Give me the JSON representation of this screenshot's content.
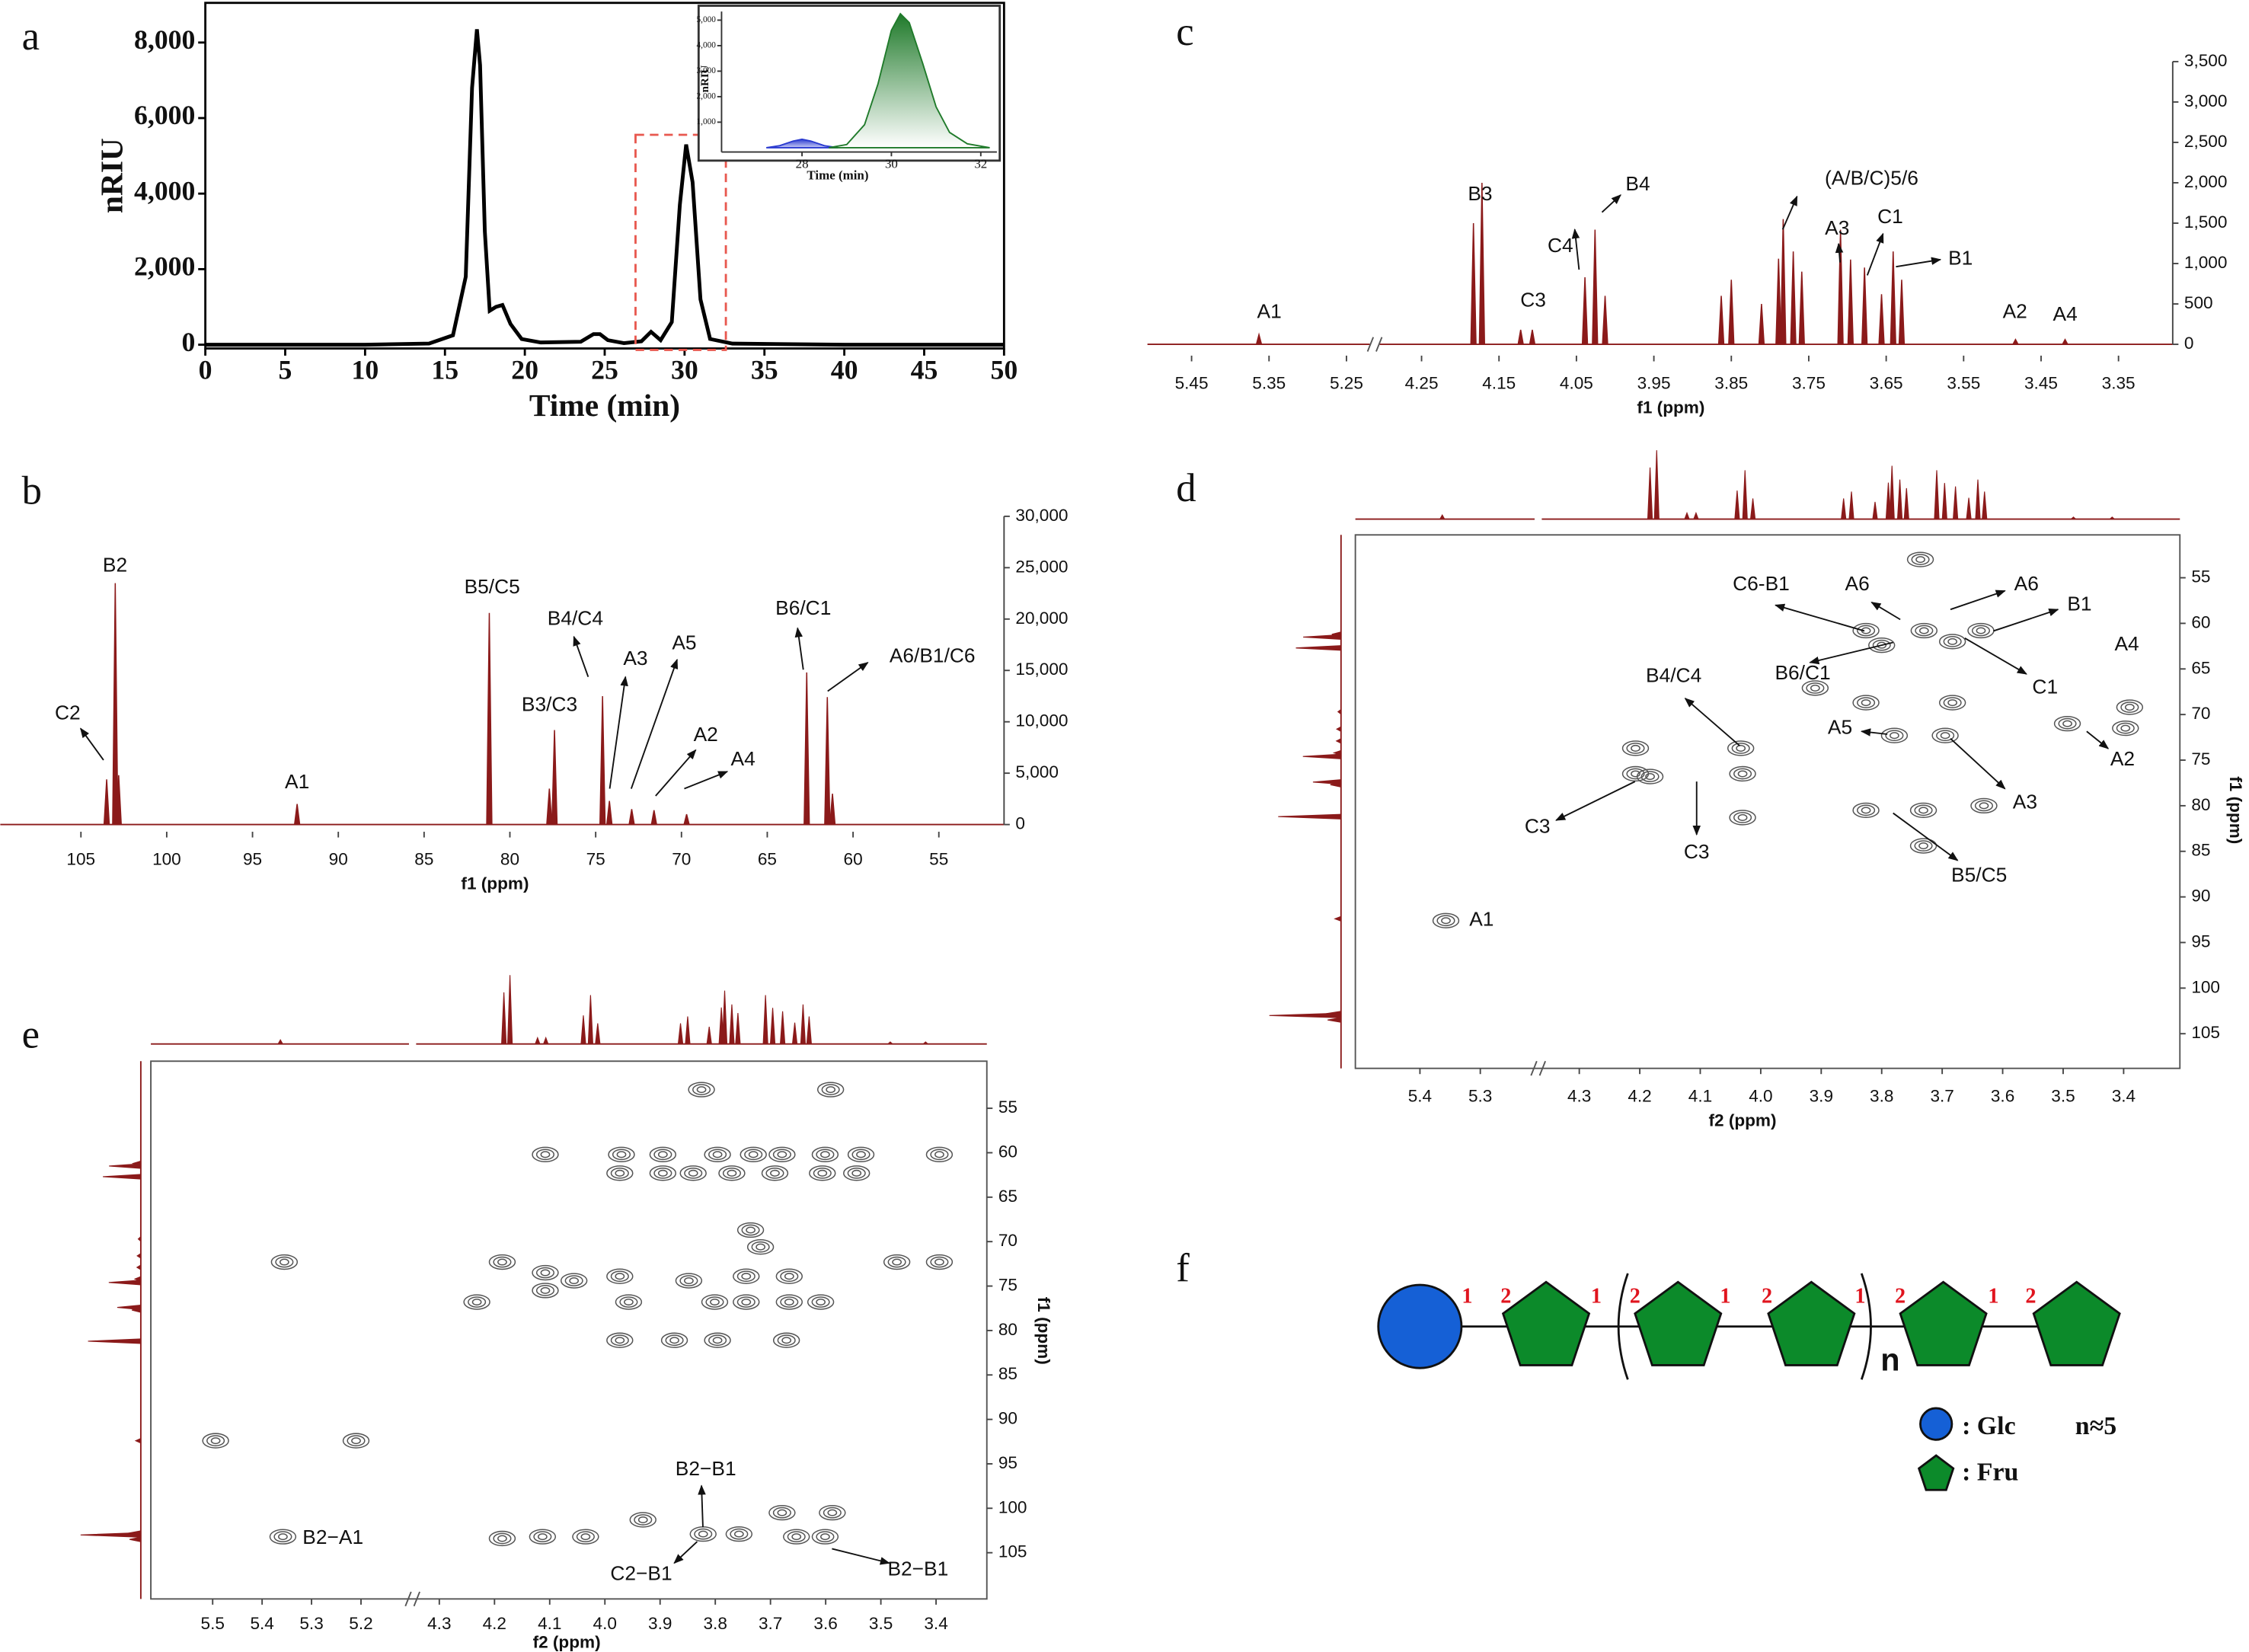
{
  "chart_data": [
    {
      "type": "line",
      "panel": "a",
      "xlabel": "Time (min)",
      "ylabel": "nRIU",
      "xlim": [
        0,
        50
      ],
      "ylim": [
        -100,
        9050
      ],
      "xticks": [
        0,
        5,
        10,
        15,
        20,
        25,
        30,
        35,
        40,
        45,
        50
      ],
      "yticks": [
        0,
        {
          "value": 2000,
          "label": "2,000"
        },
        {
          "value": 4000,
          "label": "4,000"
        },
        {
          "value": 6000,
          "label": "6,000"
        },
        {
          "value": 8000,
          "label": "8,000"
        }
      ],
      "series": [
        {
          "color": "#000000",
          "x": [
            0,
            10,
            14,
            15.5,
            16.3,
            16.7,
            17.0,
            17.2,
            17.5,
            17.8,
            18.2,
            18.6,
            19.1,
            19.8,
            21,
            23.5,
            24.3,
            24.7,
            25.2,
            26.2,
            27.3,
            27.9,
            28.5,
            29.2,
            29.7,
            30.1,
            30.5,
            31,
            31.6,
            33,
            40,
            50
          ],
          "values": [
            0,
            0,
            30,
            250,
            1800,
            6800,
            8350,
            7400,
            3000,
            900,
            1000,
            1050,
            550,
            150,
            60,
            80,
            280,
            280,
            120,
            40,
            90,
            340,
            120,
            600,
            3700,
            5300,
            4300,
            1200,
            150,
            30,
            0,
            0
          ]
        }
      ],
      "inset": {
        "type": "area",
        "xlabel": "Time (min)",
        "ylabel": "nRIU",
        "xlim": [
          26.2,
          32.36
        ],
        "ylim": [
          -170,
          5340
        ],
        "xticks": [
          28,
          30,
          32
        ],
        "yticks": [
          {
            "value": 1000,
            "label": "1,000"
          },
          {
            "value": 2000,
            "label": "2,000"
          },
          {
            "value": 3000,
            "label": "3,000"
          },
          {
            "value": 4000,
            "label": "4,000"
          },
          {
            "value": 5000,
            "label": "5,000"
          }
        ],
        "series": [
          {
            "color": "#2b3bd0",
            "x": [
              27.2,
              27.5,
              27.8,
              28,
              28.2,
              28.5,
              28.8
            ],
            "values": [
              0,
              80,
              260,
              330,
              260,
              80,
              0
            ]
          },
          {
            "color": "#1f7a2a",
            "x": [
              28.6,
              29,
              29.4,
              29.7,
              30,
              30.2,
              30.4,
              30.7,
              31,
              31.3,
              31.7,
              32.2
            ],
            "values": [
              0,
              120,
              900,
              2500,
              4600,
              5250,
              4900,
              3300,
              1600,
              600,
              150,
              0
            ]
          }
        ]
      }
    },
    {
      "type": "stick",
      "panel": "b",
      "xlabel": "f1 (ppm)",
      "color": "#8b1a1a",
      "xlim": [
        109.7,
        51.2
      ],
      "ylim": [
        -700,
        32100
      ],
      "xticks": [
        105,
        100,
        95,
        90,
        85,
        80,
        75,
        70,
        65,
        60,
        55
      ],
      "yticks": [
        0,
        {
          "value": 5000,
          "label": "5,000"
        },
        {
          "value": 10000,
          "label": "10,000"
        },
        {
          "value": 15000,
          "label": "15,000"
        },
        {
          "value": 20000,
          "label": "20,000"
        },
        {
          "value": 25000,
          "label": "25,000"
        },
        {
          "value": 30000,
          "label": "30,000"
        }
      ],
      "x": [
        103.5,
        103.0,
        102.8,
        92.4,
        81.2,
        77.7,
        77.4,
        74.6,
        74.2,
        72.9,
        71.6,
        69.7,
        62.7,
        61.5,
        61.2
      ],
      "values": [
        4400,
        23500,
        4800,
        2000,
        20600,
        3500,
        9200,
        12500,
        2300,
        1500,
        1400,
        1000,
        14800,
        12400,
        3000
      ],
      "annotations": [
        "C2",
        "B2",
        "A1",
        "B5/C5",
        "B4/C4",
        "B3/C3",
        "A3",
        "A5",
        "A2",
        "A4",
        "B6/C1",
        "A6/B1/C6"
      ]
    },
    {
      "type": "stick",
      "panel": "c",
      "xlabel": "f1 (ppm)",
      "color": "#8b1a1a",
      "xsegments": [
        [
          5.507,
          5.22
        ],
        [
          4.304,
          3.28
        ]
      ],
      "ylim": [
        -140,
        3730
      ],
      "xticks": [
        5.45,
        5.35,
        5.25,
        4.25,
        4.15,
        4.05,
        3.95,
        3.85,
        3.75,
        3.65,
        3.55,
        3.45,
        3.35
      ],
      "yticks": [
        0,
        500,
        {
          "value": 1000,
          "label": "1,000"
        },
        {
          "value": 1500,
          "label": "1,500"
        },
        {
          "value": 2000,
          "label": "2,000"
        },
        {
          "value": 2500,
          "label": "2,500"
        },
        {
          "value": 3000,
          "label": "3,000"
        },
        {
          "value": 3500,
          "label": "3,500"
        }
      ],
      "x": [
        5.363,
        4.183,
        4.172,
        4.122,
        4.107,
        4.039,
        4.026,
        4.013,
        3.863,
        3.85,
        3.811,
        3.789,
        3.783,
        3.77,
        3.759,
        3.709,
        3.696,
        3.678,
        3.656,
        3.641,
        3.63,
        3.483,
        3.419
      ],
      "values": [
        120,
        1500,
        2000,
        180,
        180,
        830,
        1420,
        600,
        600,
        800,
        500,
        1060,
        1550,
        1150,
        900,
        1420,
        1050,
        950,
        620,
        1150,
        800,
        60,
        60
      ],
      "annotations": [
        "A1",
        "B3",
        "C3",
        "C4",
        "B4",
        "(A/B/C)5/6",
        "A3",
        "C1",
        "B1",
        "A2",
        "A4"
      ]
    },
    {
      "type": "contour",
      "panel": "d",
      "xlabel": "f2 (ppm)",
      "ylabel": "f1 (ppm)",
      "xsegments": [
        [
          5.507,
          5.21
        ],
        [
          4.362,
          3.307
        ]
      ],
      "ylim": [
        50.3,
        108.8
      ],
      "xticks": [
        5.4,
        5.3,
        4.3,
        4.2,
        4.1,
        {
          "value": 4,
          "label": "4.0"
        },
        3.9,
        3.8,
        3.7,
        3.6,
        3.5,
        3.4
      ],
      "yticks": [
        55,
        60,
        65,
        70,
        75,
        80,
        85,
        90,
        95,
        100,
        105
      ],
      "x": [
        3.736,
        3.826,
        3.73,
        3.636,
        3.8,
        3.683,
        4.033,
        4.207,
        4.207,
        4.03,
        4.03,
        4.183,
        3.779,
        3.695,
        3.826,
        3.731,
        3.731,
        3.493,
        3.39,
        3.397,
        5.357,
        3.683,
        3.826,
        3.91,
        3.631
      ],
      "y": [
        53,
        60.8,
        60.8,
        60.8,
        62.4,
        62,
        73.7,
        73.7,
        76.5,
        76.5,
        81.3,
        76.8,
        72.3,
        72.3,
        80.5,
        80.5,
        84.4,
        71,
        69.2,
        71.5,
        92.6,
        68.7,
        68.7,
        67.1,
        80
      ],
      "annotations": [
        "C6-B1",
        "A6",
        "A6",
        "B1",
        "B6/C1",
        "C1",
        "A4",
        "B4/C4",
        "A5",
        "A2",
        "C3",
        "C3",
        "A3",
        "B5/C5",
        "A1"
      ]
    },
    {
      "type": "contour",
      "panel": "e",
      "xlabel": "f2 (ppm)",
      "ylabel": "f1 (ppm)",
      "xsegments": [
        [
          5.625,
          5.103
        ],
        [
          4.342,
          3.308
        ]
      ],
      "ylim": [
        49.7,
        110.2
      ],
      "xticks": [
        5.5,
        5.4,
        5.3,
        5.2,
        4.3,
        4.2,
        4.1,
        {
          "value": 4,
          "label": "4.0"
        },
        3.9,
        3.8,
        3.7,
        3.6,
        3.5,
        3.4
      ],
      "yticks": [
        55,
        60,
        65,
        70,
        75,
        80,
        85,
        90,
        95,
        100,
        105
      ],
      "x": [
        3.825,
        3.591,
        4.108,
        3.97,
        3.895,
        3.796,
        3.731,
        3.679,
        3.601,
        3.536,
        3.394,
        3.973,
        3.895,
        3.84,
        3.77,
        3.692,
        3.606,
        3.544,
        3.736,
        3.718,
        5.355,
        4.186,
        4.108,
        4.056,
        3.973,
        3.848,
        3.744,
        3.666,
        3.471,
        3.394,
        4.108,
        4.232,
        3.957,
        3.801,
        3.744,
        3.666,
        3.609,
        3.973,
        3.874,
        3.796,
        3.671,
        5.494,
        5.21,
        5.358,
        4.113,
        4.035,
        4.186,
        3.931,
        3.822,
        3.757,
        3.653,
        3.601,
        3.679,
        3.588
      ],
      "y": [
        52.9,
        52.9,
        60.2,
        60.2,
        60.2,
        60.2,
        60.2,
        60.2,
        60.2,
        60.2,
        60.2,
        62.3,
        62.3,
        62.3,
        62.3,
        62.3,
        62.3,
        62.3,
        68.7,
        70.6,
        72.3,
        72.3,
        73.5,
        74.4,
        73.9,
        74.4,
        73.9,
        73.9,
        72.3,
        72.3,
        75.5,
        76.8,
        76.8,
        76.8,
        76.8,
        76.8,
        76.8,
        81.1,
        81.1,
        81.1,
        81.1,
        92.4,
        92.4,
        103.2,
        103.2,
        103.2,
        103.4,
        101.3,
        102.9,
        102.9,
        103.2,
        103.2,
        100.5,
        100.5
      ],
      "annotations": [
        "B2−A1",
        "B2−B1",
        "C2−B1",
        "B2−B1"
      ]
    }
  ],
  "diagram": {
    "label": "f",
    "linkage_numbers": [
      "1",
      "2",
      "1",
      "2",
      "1",
      "2",
      "1",
      "2",
      "1",
      "2"
    ],
    "repeat_subscript": "n",
    "legend": [
      ": Glc",
      ": Fru"
    ],
    "note": "n≈5"
  }
}
